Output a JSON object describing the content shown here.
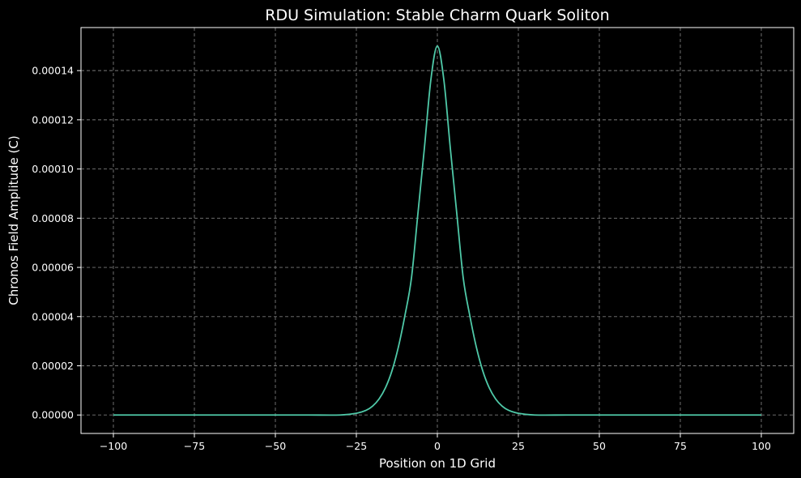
{
  "chart_data": {
    "type": "line",
    "title": "RDU Simulation: Stable Charm Quark Soliton",
    "xlabel": "Position on 1D Grid",
    "ylabel": "Chronos Field Amplitude (C)",
    "xlim": [
      -110,
      110
    ],
    "ylim": [
      -7.5e-06,
      0.0001575
    ],
    "xticks": [
      -100,
      -75,
      -50,
      -25,
      0,
      25,
      50,
      75,
      100
    ],
    "xtick_labels": [
      "−100",
      "−75",
      "−50",
      "−25",
      "0",
      "25",
      "50",
      "75",
      "100"
    ],
    "yticks": [
      0,
      2e-05,
      4e-05,
      6e-05,
      8e-05,
      0.0001,
      0.00012,
      0.00014
    ],
    "ytick_labels": [
      "0.00000",
      "0.00002",
      "0.00004",
      "0.00006",
      "0.00008",
      "0.00010",
      "0.00012",
      "0.00014"
    ],
    "grid": true,
    "background": "#000000",
    "foreground": "#ffffff",
    "grid_color": "#7a7a7a",
    "series": [
      {
        "color": "#4fc9a8",
        "x": [
          -100,
          -75,
          -50,
          -40,
          -30,
          -25,
          -22,
          -20,
          -18,
          -16,
          -14,
          -12,
          -10,
          -8,
          -6,
          -4,
          -2,
          0,
          2,
          4,
          6,
          8,
          10,
          12,
          14,
          16,
          18,
          20,
          22,
          25,
          30,
          40,
          50,
          75,
          100
        ],
        "y": [
          0,
          0,
          0,
          0,
          0,
          7e-07,
          1.9e-06,
          3.6e-06,
          6.5e-06,
          1.11e-05,
          1.8e-05,
          2.78e-05,
          4.05e-05,
          5.56e-05,
          8.19e-05,
          0.0001085,
          0.0001363,
          0.00015,
          0.0001363,
          0.0001085,
          8.19e-05,
          5.56e-05,
          4.05e-05,
          2.78e-05,
          1.8e-05,
          1.11e-05,
          6.5e-06,
          3.6e-06,
          1.9e-06,
          7e-07,
          0,
          0,
          0,
          0,
          0
        ]
      }
    ]
  }
}
